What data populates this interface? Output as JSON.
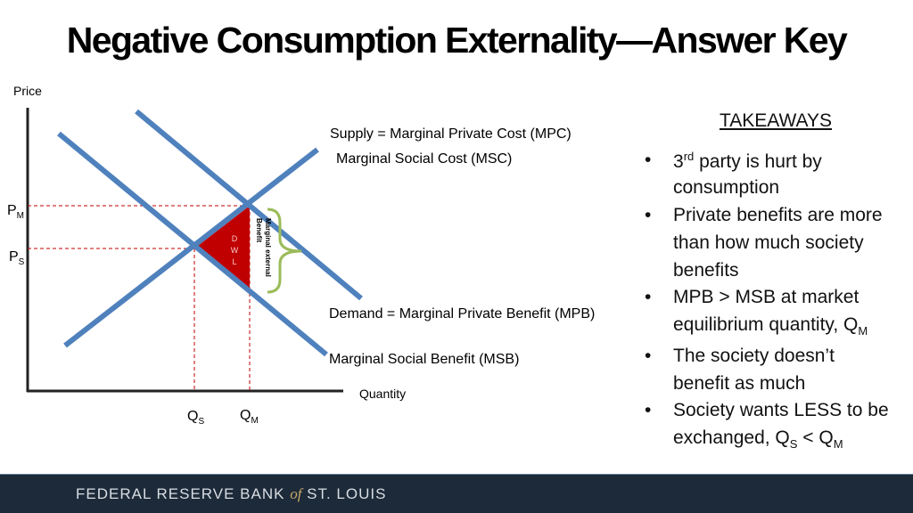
{
  "title": "Negative Consumption Externality—Answer Key",
  "graph": {
    "y_axis_label": "Price",
    "x_axis_label": "Quantity",
    "price_labels": [
      {
        "main": "P",
        "sub": "M"
      },
      {
        "main": "P",
        "sub": "S"
      }
    ],
    "quantity_labels": [
      {
        "main": "Q",
        "sub": "S"
      },
      {
        "main": "Q",
        "sub": "M"
      }
    ],
    "curve_labels": [
      "Supply = Marginal Private Cost (MPC)",
      "Marginal Social Cost (MSC)",
      "Demand = Marginal Private Benefit (MPB)",
      "Marginal Social Benefit (MSB)"
    ],
    "dwl_label": [
      "D",
      "W",
      "L"
    ],
    "brace_label": [
      "Marginal external",
      "Benefit"
    ]
  },
  "takeaways": {
    "heading": "TAKEAWAYS",
    "bullets": [
      [
        [
          {
            "text": "3"
          },
          {
            "sup": "rd"
          },
          {
            "text": " party is hurt by"
          }
        ],
        [
          {
            "text": "consumption"
          }
        ]
      ],
      [
        [
          {
            "text": "Private benefits are more"
          }
        ],
        [
          {
            "text": "than how much society"
          }
        ],
        [
          {
            "text": "benefits"
          }
        ]
      ],
      [
        [
          {
            "text": "MPB > MSB at market"
          }
        ],
        [
          {
            "text": "equilibrium quantity, Q"
          },
          {
            "sub": "M"
          }
        ]
      ],
      [
        [
          {
            "text": "The society doesn’t"
          }
        ],
        [
          {
            "text": "benefit as much"
          }
        ]
      ],
      [
        [
          {
            "text": "Society wants LESS to be"
          }
        ],
        [
          {
            "text": "exchanged, Q"
          },
          {
            "sub": "S"
          },
          {
            "text": " < Q"
          },
          {
            "sub": "M"
          }
        ]
      ]
    ]
  },
  "footer": {
    "before": "FEDERAL RESERVE BANK ",
    "of": "of",
    "after": " ST. LOUIS"
  }
}
